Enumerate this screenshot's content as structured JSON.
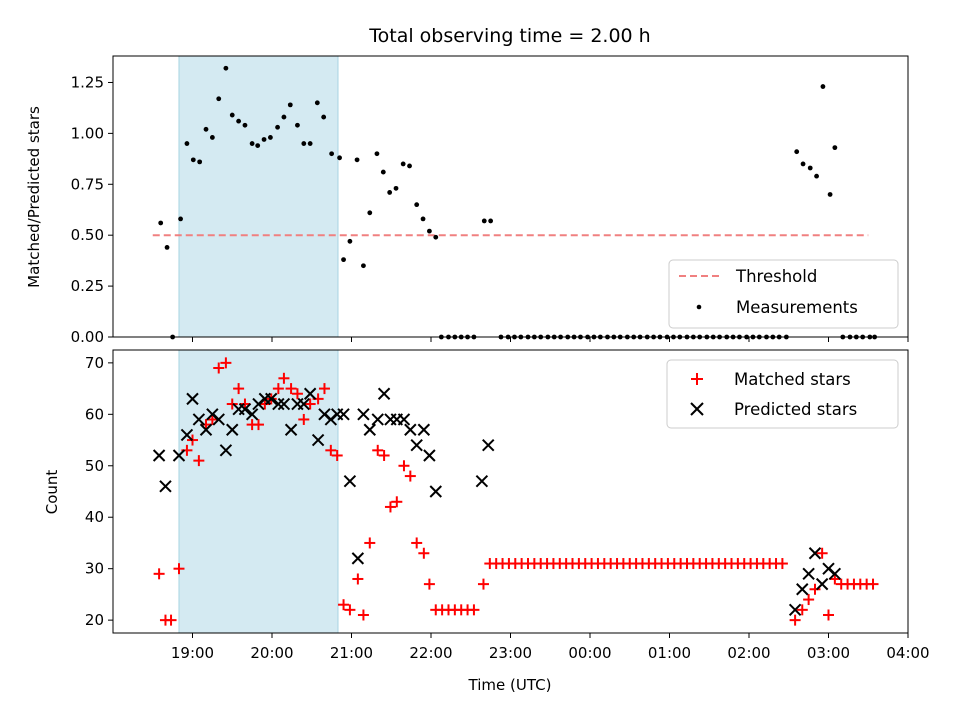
{
  "chart_data": [
    {
      "panel": "top",
      "type": "scatter",
      "title": "Total observing time = 2.00 h",
      "ylabel": "Matched/Predicted stars",
      "ylim": [
        0,
        1.38
      ],
      "yticks": [
        "0.00",
        "0.25",
        "0.50",
        "0.75",
        "1.00",
        "1.25"
      ],
      "ytick_values": [
        0,
        0.25,
        0.5,
        0.75,
        1.0,
        1.25
      ],
      "xlim_hours": [
        18.0,
        28.0
      ],
      "highlight_span_hours": [
        18.83,
        20.83
      ],
      "highlight_color": "#d4eaf2",
      "legend_position": "lower-right",
      "threshold": {
        "name": "Threshold",
        "value": 0.5,
        "x_hours": [
          18.5,
          27.5
        ],
        "color": "#f08080"
      },
      "measurements": {
        "name": "Measurements",
        "color": "#000000",
        "points": [
          [
            18.6,
            0.56
          ],
          [
            18.68,
            0.44
          ],
          [
            18.75,
            0.0
          ],
          [
            18.85,
            0.58
          ],
          [
            18.93,
            0.95
          ],
          [
            19.01,
            0.87
          ],
          [
            19.09,
            0.86
          ],
          [
            19.17,
            1.02
          ],
          [
            19.25,
            0.98
          ],
          [
            19.33,
            1.17
          ],
          [
            19.42,
            1.32
          ],
          [
            19.5,
            1.09
          ],
          [
            19.58,
            1.06
          ],
          [
            19.66,
            1.04
          ],
          [
            19.75,
            0.95
          ],
          [
            19.82,
            0.94
          ],
          [
            19.9,
            0.97
          ],
          [
            19.98,
            0.98
          ],
          [
            20.07,
            1.03
          ],
          [
            20.15,
            1.08
          ],
          [
            20.23,
            1.14
          ],
          [
            20.32,
            1.04
          ],
          [
            20.4,
            0.95
          ],
          [
            20.48,
            0.95
          ],
          [
            20.57,
            1.15
          ],
          [
            20.65,
            1.08
          ],
          [
            20.75,
            0.9
          ],
          [
            20.85,
            0.88
          ],
          [
            20.9,
            0.38
          ],
          [
            20.98,
            0.47
          ],
          [
            21.07,
            0.87
          ],
          [
            21.15,
            0.35
          ],
          [
            21.23,
            0.61
          ],
          [
            21.32,
            0.9
          ],
          [
            21.4,
            0.81
          ],
          [
            21.48,
            0.71
          ],
          [
            21.56,
            0.73
          ],
          [
            21.65,
            0.85
          ],
          [
            21.73,
            0.84
          ],
          [
            21.82,
            0.65
          ],
          [
            21.9,
            0.58
          ],
          [
            21.98,
            0.52
          ],
          [
            22.06,
            0.49
          ],
          [
            22.13,
            0.0
          ],
          [
            22.22,
            0.0
          ],
          [
            22.3,
            0.0
          ],
          [
            22.38,
            0.0
          ],
          [
            22.46,
            0.0
          ],
          [
            22.54,
            0.0
          ],
          [
            22.67,
            0.57
          ],
          [
            22.75,
            0.57
          ],
          [
            22.88,
            0.0
          ],
          [
            22.97,
            0.0
          ],
          [
            23.05,
            0.0
          ],
          [
            23.13,
            0.0
          ],
          [
            23.22,
            0.0
          ],
          [
            23.3,
            0.0
          ],
          [
            23.38,
            0.0
          ],
          [
            23.47,
            0.0
          ],
          [
            23.55,
            0.0
          ],
          [
            23.63,
            0.0
          ],
          [
            23.72,
            0.0
          ],
          [
            23.8,
            0.0
          ],
          [
            23.88,
            0.0
          ],
          [
            23.97,
            0.0
          ],
          [
            24.05,
            0.0
          ],
          [
            24.13,
            0.0
          ],
          [
            24.22,
            0.0
          ],
          [
            24.3,
            0.0
          ],
          [
            24.38,
            0.0
          ],
          [
            24.47,
            0.0
          ],
          [
            24.55,
            0.0
          ],
          [
            24.63,
            0.0
          ],
          [
            24.72,
            0.0
          ],
          [
            24.8,
            0.0
          ],
          [
            24.88,
            0.0
          ],
          [
            24.97,
            0.0
          ],
          [
            25.05,
            0.0
          ],
          [
            25.13,
            0.0
          ],
          [
            25.22,
            0.0
          ],
          [
            25.3,
            0.0
          ],
          [
            25.38,
            0.0
          ],
          [
            25.47,
            0.0
          ],
          [
            25.55,
            0.0
          ],
          [
            25.63,
            0.0
          ],
          [
            25.72,
            0.0
          ],
          [
            25.8,
            0.0
          ],
          [
            25.88,
            0.0
          ],
          [
            25.97,
            0.0
          ],
          [
            26.05,
            0.0
          ],
          [
            26.13,
            0.0
          ],
          [
            26.22,
            0.0
          ],
          [
            26.3,
            0.0
          ],
          [
            26.38,
            0.0
          ],
          [
            26.47,
            0.0
          ],
          [
            26.6,
            0.91
          ],
          [
            26.68,
            0.85
          ],
          [
            26.77,
            0.83
          ],
          [
            26.85,
            0.79
          ],
          [
            26.93,
            1.23
          ],
          [
            27.02,
            0.7
          ],
          [
            27.08,
            0.93
          ],
          [
            27.18,
            0.0
          ],
          [
            27.27,
            0.0
          ],
          [
            27.35,
            0.0
          ],
          [
            27.43,
            0.0
          ],
          [
            27.52,
            0.0
          ],
          [
            27.58,
            0.0
          ]
        ]
      }
    },
    {
      "panel": "bottom",
      "type": "scatter",
      "xlabel": "Time (UTC)",
      "ylabel": "Count",
      "ylim": [
        17.5,
        72.5
      ],
      "yticks": [
        "20",
        "30",
        "40",
        "50",
        "60",
        "70"
      ],
      "ytick_values": [
        20,
        30,
        40,
        50,
        60,
        70
      ],
      "xlim_hours": [
        18.0,
        28.0
      ],
      "xticks": [
        "19:00",
        "20:00",
        "21:00",
        "22:00",
        "23:00",
        "00:00",
        "01:00",
        "02:00",
        "03:00",
        "04:00"
      ],
      "xtick_hours": [
        19,
        20,
        21,
        22,
        23,
        24,
        25,
        26,
        27,
        28
      ],
      "highlight_span_hours": [
        18.83,
        20.83
      ],
      "legend_position": "upper-right",
      "series": [
        {
          "name": "Matched stars",
          "marker": "+",
          "color": "#ff0000",
          "points": [
            [
              18.58,
              29
            ],
            [
              18.66,
              20
            ],
            [
              18.73,
              20
            ],
            [
              18.83,
              30
            ],
            [
              18.93,
              53
            ],
            [
              19.0,
              55
            ],
            [
              19.08,
              51
            ],
            [
              19.17,
              58
            ],
            [
              19.25,
              59
            ],
            [
              19.33,
              69
            ],
            [
              19.42,
              70
            ],
            [
              19.5,
              62
            ],
            [
              19.58,
              65
            ],
            [
              19.66,
              62
            ],
            [
              19.75,
              58
            ],
            [
              19.83,
              58
            ],
            [
              19.91,
              62
            ],
            [
              19.99,
              63
            ],
            [
              20.08,
              65
            ],
            [
              20.15,
              67
            ],
            [
              20.24,
              65
            ],
            [
              20.32,
              64
            ],
            [
              20.4,
              59
            ],
            [
              20.48,
              62
            ],
            [
              20.58,
              63
            ],
            [
              20.66,
              65
            ],
            [
              20.74,
              53
            ],
            [
              20.82,
              52
            ],
            [
              20.9,
              23
            ],
            [
              20.98,
              22
            ],
            [
              21.08,
              28
            ],
            [
              21.15,
              21
            ],
            [
              21.23,
              35
            ],
            [
              21.33,
              53
            ],
            [
              21.41,
              52
            ],
            [
              21.49,
              42
            ],
            [
              21.57,
              43
            ],
            [
              21.66,
              50
            ],
            [
              21.74,
              48
            ],
            [
              21.82,
              35
            ],
            [
              21.91,
              33
            ],
            [
              21.98,
              27
            ],
            [
              22.06,
              22
            ],
            [
              22.14,
              22
            ],
            [
              22.22,
              22
            ],
            [
              22.3,
              22
            ],
            [
              22.38,
              22
            ],
            [
              22.46,
              22
            ],
            [
              22.54,
              22
            ],
            [
              22.66,
              27
            ],
            [
              22.74,
              31
            ],
            [
              22.82,
              31
            ],
            [
              22.9,
              31
            ],
            [
              22.98,
              31
            ],
            [
              23.06,
              31
            ],
            [
              23.14,
              31
            ],
            [
              23.22,
              31
            ],
            [
              23.3,
              31
            ],
            [
              23.38,
              31
            ],
            [
              23.46,
              31
            ],
            [
              23.54,
              31
            ],
            [
              23.62,
              31
            ],
            [
              23.7,
              31
            ],
            [
              23.78,
              31
            ],
            [
              23.86,
              31
            ],
            [
              23.94,
              31
            ],
            [
              24.02,
              31
            ],
            [
              24.1,
              31
            ],
            [
              24.18,
              31
            ],
            [
              24.26,
              31
            ],
            [
              24.34,
              31
            ],
            [
              24.42,
              31
            ],
            [
              24.5,
              31
            ],
            [
              24.58,
              31
            ],
            [
              24.66,
              31
            ],
            [
              24.74,
              31
            ],
            [
              24.82,
              31
            ],
            [
              24.9,
              31
            ],
            [
              24.98,
              31
            ],
            [
              25.06,
              31
            ],
            [
              25.14,
              31
            ],
            [
              25.22,
              31
            ],
            [
              25.3,
              31
            ],
            [
              25.38,
              31
            ],
            [
              25.46,
              31
            ],
            [
              25.54,
              31
            ],
            [
              25.62,
              31
            ],
            [
              25.7,
              31
            ],
            [
              25.78,
              31
            ],
            [
              25.86,
              31
            ],
            [
              25.94,
              31
            ],
            [
              26.02,
              31
            ],
            [
              26.1,
              31
            ],
            [
              26.18,
              31
            ],
            [
              26.26,
              31
            ],
            [
              26.34,
              31
            ],
            [
              26.42,
              31
            ],
            [
              26.58,
              20
            ],
            [
              26.67,
              22
            ],
            [
              26.75,
              24
            ],
            [
              26.83,
              26
            ],
            [
              26.92,
              33
            ],
            [
              27.0,
              21
            ],
            [
              27.08,
              28
            ],
            [
              27.16,
              27
            ],
            [
              27.24,
              27
            ],
            [
              27.32,
              27
            ],
            [
              27.4,
              27
            ],
            [
              27.48,
              27
            ],
            [
              27.56,
              27
            ]
          ]
        },
        {
          "name": "Predicted stars",
          "marker": "x",
          "color": "#000000",
          "points": [
            [
              18.58,
              52
            ],
            [
              18.66,
              46
            ],
            [
              18.83,
              52
            ],
            [
              18.93,
              56
            ],
            [
              19.0,
              63
            ],
            [
              19.08,
              59
            ],
            [
              19.17,
              57
            ],
            [
              19.25,
              60
            ],
            [
              19.33,
              59
            ],
            [
              19.42,
              53
            ],
            [
              19.5,
              57
            ],
            [
              19.58,
              61
            ],
            [
              19.66,
              61
            ],
            [
              19.75,
              60
            ],
            [
              19.83,
              62
            ],
            [
              19.91,
              63
            ],
            [
              19.99,
              63
            ],
            [
              20.08,
              62
            ],
            [
              20.15,
              62
            ],
            [
              20.24,
              57
            ],
            [
              20.32,
              62
            ],
            [
              20.4,
              62
            ],
            [
              20.48,
              64
            ],
            [
              20.58,
              55
            ],
            [
              20.66,
              60
            ],
            [
              20.74,
              59
            ],
            [
              20.82,
              60
            ],
            [
              20.9,
              60
            ],
            [
              20.98,
              47
            ],
            [
              21.08,
              32
            ],
            [
              21.15,
              60
            ],
            [
              21.23,
              57
            ],
            [
              21.33,
              59
            ],
            [
              21.41,
              64
            ],
            [
              21.49,
              59
            ],
            [
              21.57,
              59
            ],
            [
              21.66,
              59
            ],
            [
              21.74,
              57
            ],
            [
              21.82,
              54
            ],
            [
              21.91,
              57
            ],
            [
              21.98,
              52
            ],
            [
              22.06,
              45
            ],
            [
              22.64,
              47
            ],
            [
              22.72,
              54
            ],
            [
              26.58,
              22
            ],
            [
              26.67,
              26
            ],
            [
              26.75,
              29
            ],
            [
              26.83,
              33
            ],
            [
              26.92,
              27
            ],
            [
              27.0,
              30
            ],
            [
              27.08,
              29
            ]
          ]
        }
      ]
    }
  ]
}
